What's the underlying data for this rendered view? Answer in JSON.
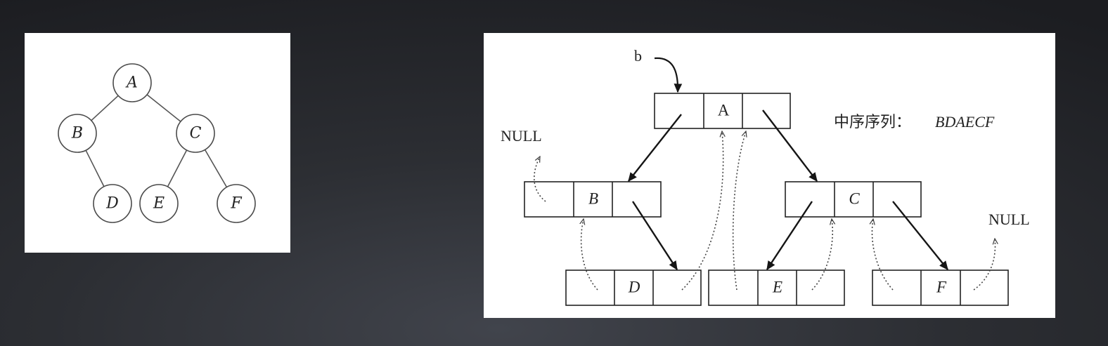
{
  "colors": {
    "panel": "#ffffff",
    "ink": "#222222",
    "background": "#2c2e33"
  },
  "binary_tree": {
    "nodes": [
      {
        "label": "A"
      },
      {
        "label": "B"
      },
      {
        "label": "C"
      },
      {
        "label": "D"
      },
      {
        "label": "E"
      },
      {
        "label": "F"
      }
    ]
  },
  "threaded_tree": {
    "root_pointer": "b",
    "nodes": [
      {
        "label": "A"
      },
      {
        "label": "B"
      },
      {
        "label": "C"
      },
      {
        "label": "D"
      },
      {
        "label": "E"
      },
      {
        "label": "F"
      }
    ],
    "null_left": "NULL",
    "null_right": "NULL",
    "caption_prefix": "中序序列：",
    "caption_sequence": "BDAECF"
  }
}
